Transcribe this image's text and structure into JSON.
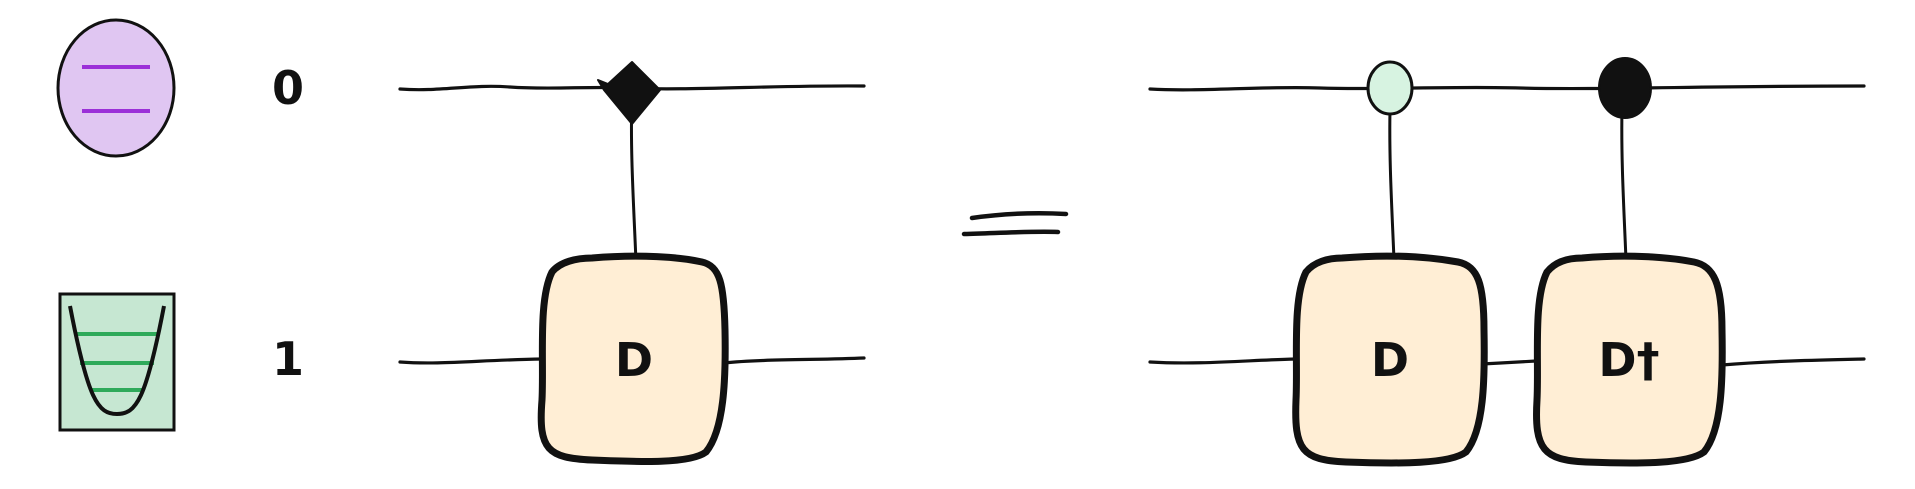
{
  "wires": [
    {
      "index_label": "0",
      "icon": "qubit-energy-levels-icon"
    },
    {
      "index_label": "1",
      "icon": "qumode-harmonic-oscillator-icon"
    }
  ],
  "left_circuit": {
    "control": "diamond",
    "gate_label": "D"
  },
  "equals_sign": "equals",
  "right_circuit": {
    "gates": [
      {
        "control": "open-circle",
        "gate_label": "D"
      },
      {
        "control": "filled-circle",
        "gate_label": "D†"
      }
    ]
  },
  "colors": {
    "qubit_fill": "#e0c6f2",
    "qubit_lines": "#9b30d8",
    "qumode_fill": "#c6e7d2",
    "qumode_lines": "#2eaa5a",
    "gate_fill": "#ffeed5",
    "open_control_fill": "#d7f3e1",
    "ink": "#111111"
  }
}
